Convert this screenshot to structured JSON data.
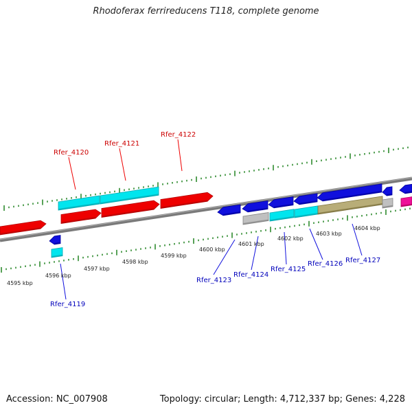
{
  "title": "Rhodoferax ferrireducens T118, complete genome",
  "footer": {
    "accession": "Accession: NC_007908",
    "summary": "Topology: circular; Length: 4,712,337 bp; Genes: 4,228"
  },
  "colors": {
    "backbone": "#808080",
    "tick": "#2e8b2e",
    "red": "#ee0000",
    "blue": "#1010dd",
    "cyan": "#00e5ee",
    "gray": "#c0c0c0",
    "khaki": "#b8ad78",
    "magenta": "#ee1199",
    "red_label": "#cc0000",
    "blue_label": "#0000bb"
  },
  "scale_labels": [
    "4595 kbp",
    "4596 kbp",
    "4597 kbp",
    "4598 kbp",
    "4599 kbp",
    "4600 kbp",
    "4601 kbp",
    "4602 kbp",
    "4603 kbp",
    "4604 kbp"
  ],
  "gene_labels": {
    "forward": [
      "Rfer_4120",
      "Rfer_4121",
      "Rfer_4122"
    ],
    "reverse": [
      "Rfer_4119",
      "Rfer_4123",
      "Rfer_4124",
      "Rfer_4125",
      "Rfer_4126",
      "Rfer_4127"
    ]
  }
}
